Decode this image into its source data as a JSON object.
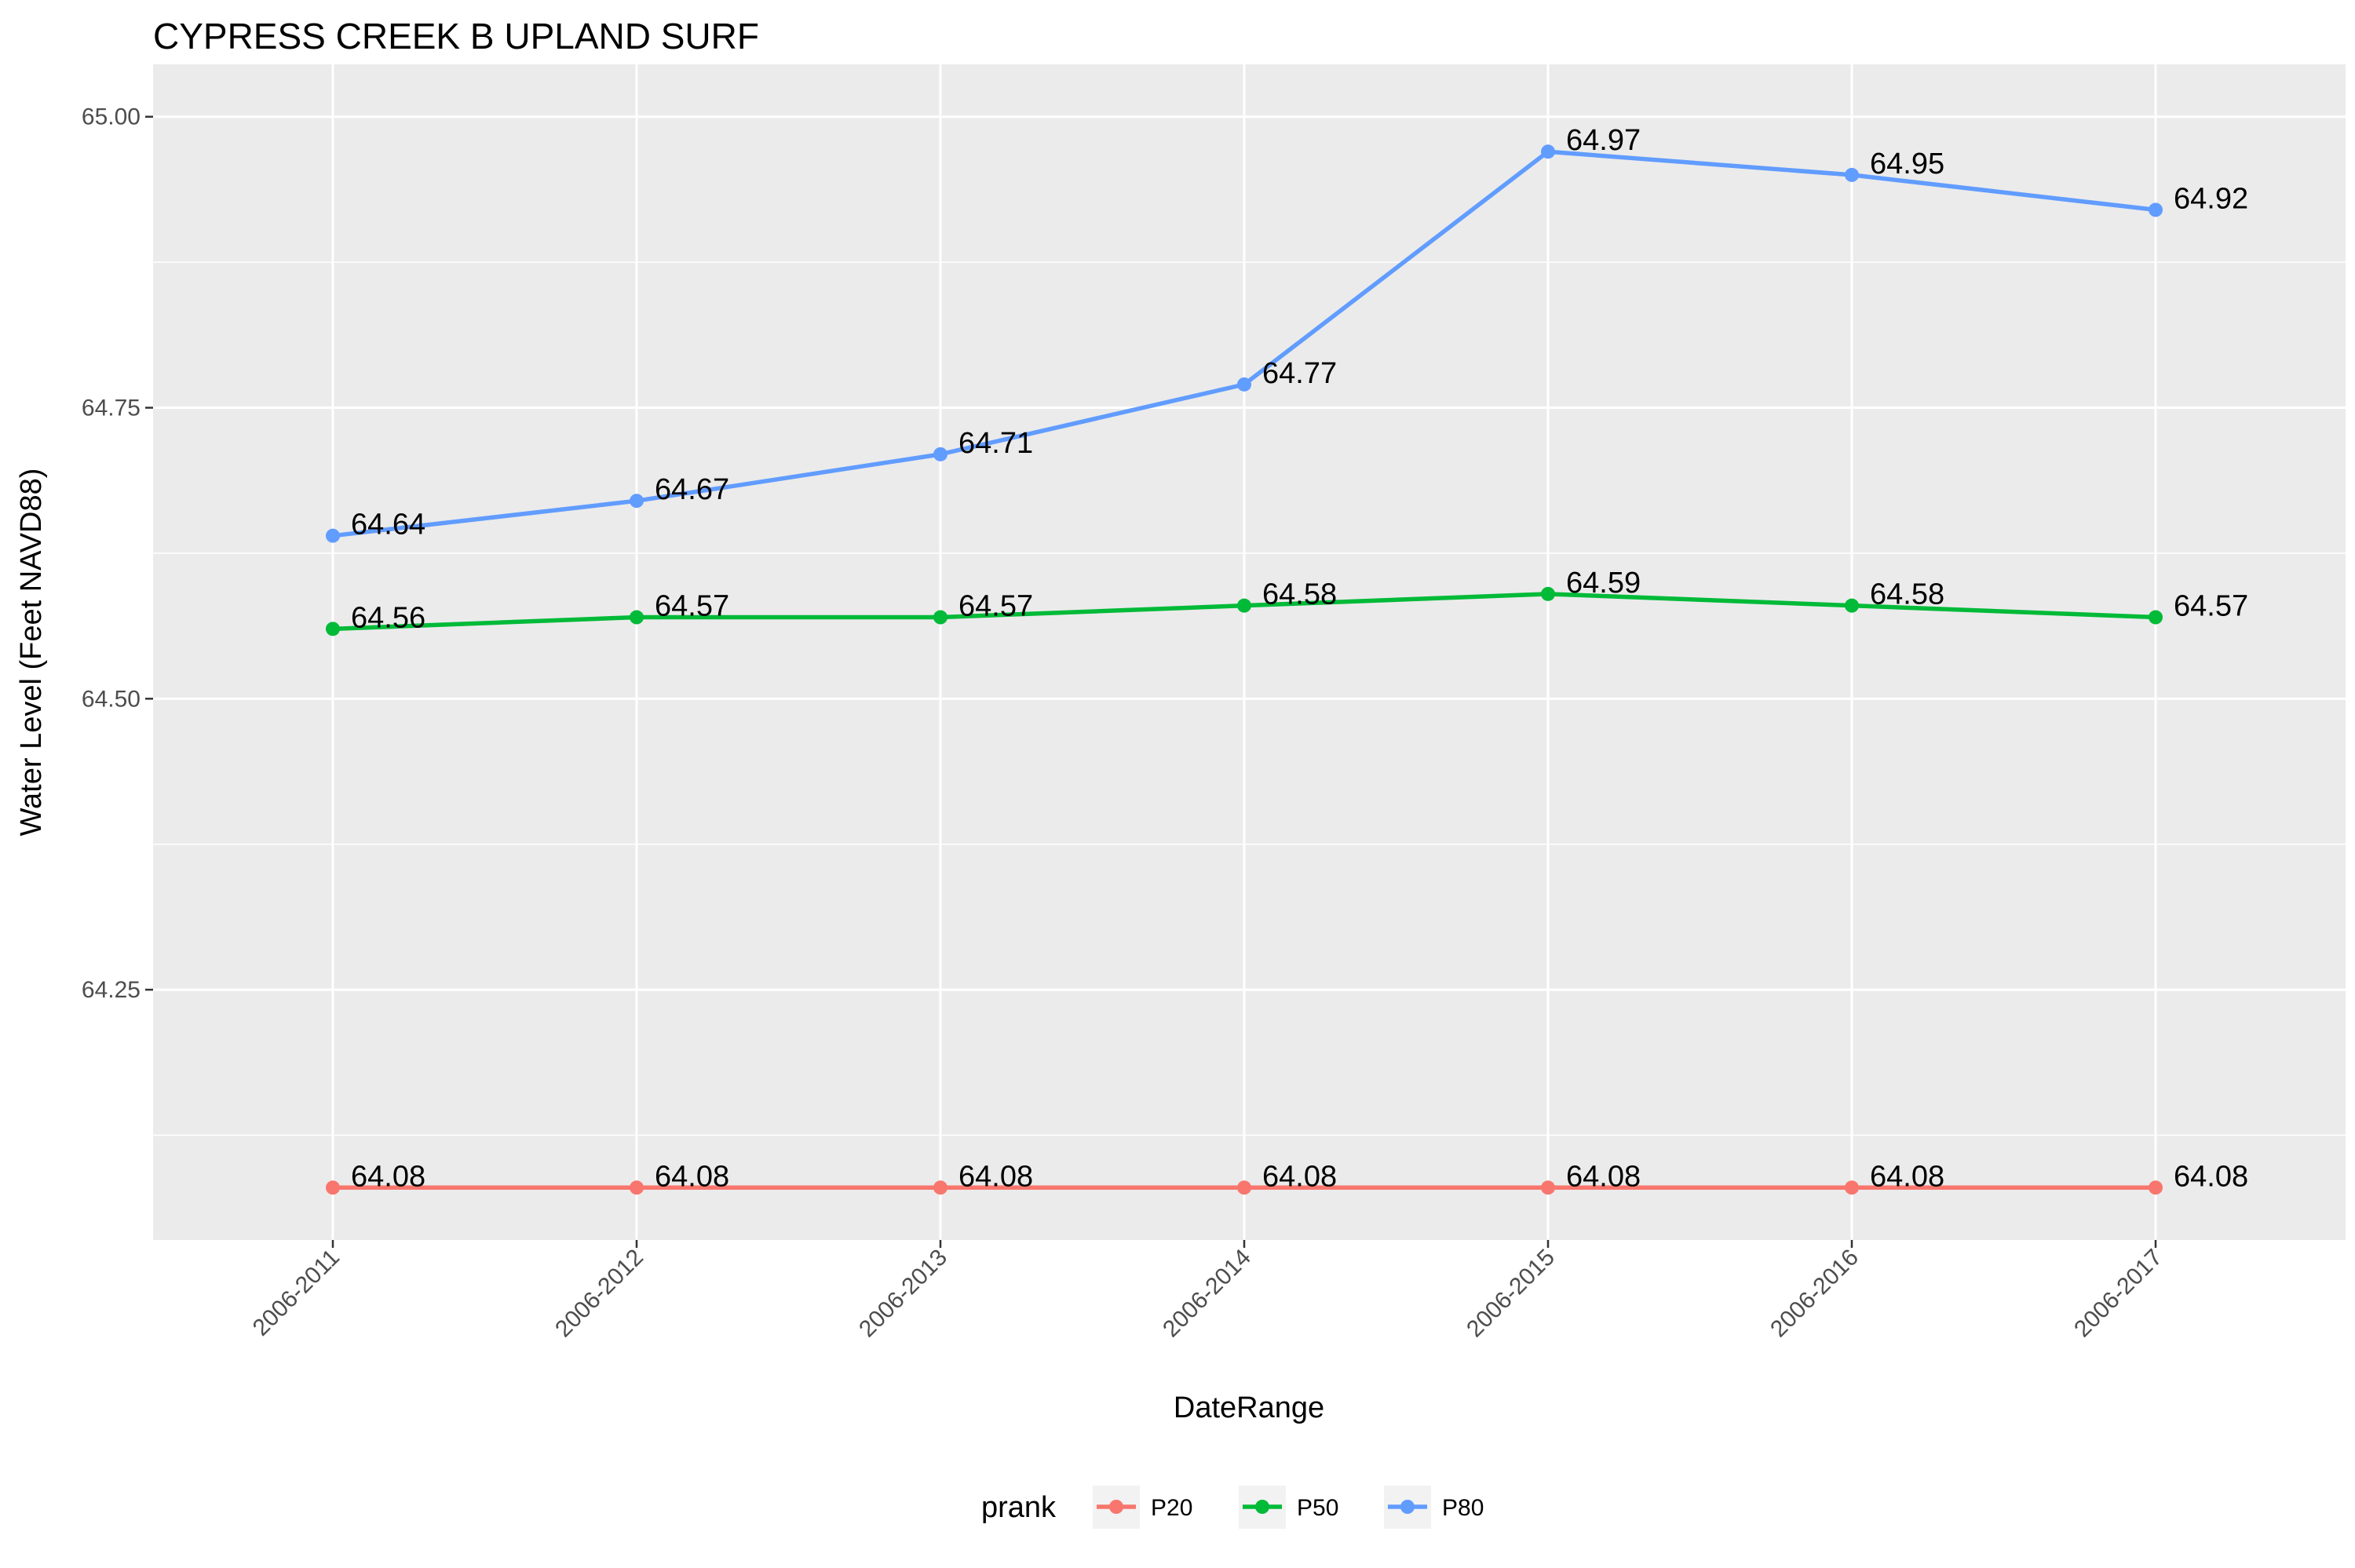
{
  "chart_data": {
    "type": "line",
    "title": "CYPRESS CREEK B UPLAND SURF",
    "xlabel": "DateRange",
    "ylabel": "Water Level (Feet NAVD88)",
    "categories": [
      "2006-2011",
      "2006-2012",
      "2006-2013",
      "2006-2014",
      "2006-2015",
      "2006-2016",
      "2006-2017"
    ],
    "ylim": [
      64.035,
      65.045
    ],
    "yticks": [
      64.25,
      64.5,
      64.75,
      65.0
    ],
    "ytick_labels": [
      "64.25",
      "64.50",
      "64.75",
      "65.00"
    ],
    "grid": true,
    "legend": {
      "title": "prank",
      "placement": "bottom"
    },
    "series": [
      {
        "name": "P20",
        "color": "#F8766D",
        "values": [
          64.08,
          64.08,
          64.08,
          64.08,
          64.08,
          64.08,
          64.08
        ]
      },
      {
        "name": "P50",
        "color": "#00BA38",
        "values": [
          64.56,
          64.57,
          64.57,
          64.58,
          64.59,
          64.58,
          64.57
        ]
      },
      {
        "name": "P80",
        "color": "#619CFF",
        "values": [
          64.64,
          64.67,
          64.71,
          64.77,
          64.97,
          64.95,
          64.92
        ]
      }
    ]
  }
}
